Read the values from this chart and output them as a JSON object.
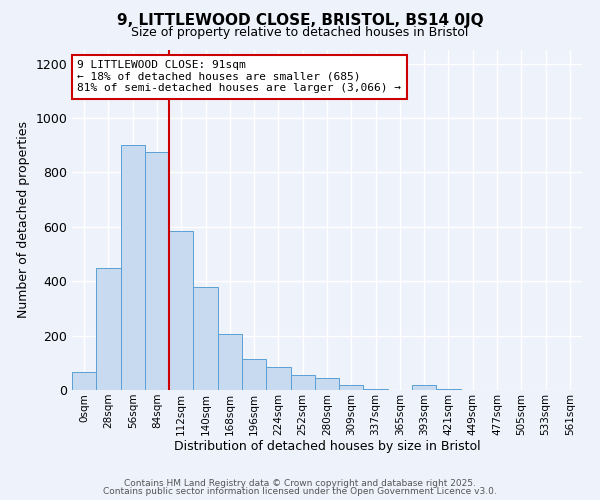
{
  "title": "9, LITTLEWOOD CLOSE, BRISTOL, BS14 0JQ",
  "subtitle": "Size of property relative to detached houses in Bristol",
  "xlabel": "Distribution of detached houses by size in Bristol",
  "ylabel": "Number of detached properties",
  "bin_labels": [
    "0sqm",
    "28sqm",
    "56sqm",
    "84sqm",
    "112sqm",
    "140sqm",
    "168sqm",
    "196sqm",
    "224sqm",
    "252sqm",
    "280sqm",
    "309sqm",
    "337sqm",
    "365sqm",
    "393sqm",
    "421sqm",
    "449sqm",
    "477sqm",
    "505sqm",
    "533sqm",
    "561sqm"
  ],
  "bar_values": [
    65,
    450,
    900,
    875,
    585,
    380,
    205,
    115,
    85,
    55,
    45,
    18,
    5,
    0,
    20,
    5,
    0,
    0,
    0,
    0,
    0
  ],
  "bar_color": "#c8daf0",
  "bar_edge_color": "#5a9fd4",
  "vline_x": 3,
  "vline_color": "#cc0000",
  "ylim": [
    0,
    1250
  ],
  "yticks": [
    0,
    200,
    400,
    600,
    800,
    1000,
    1200
  ],
  "annotation_title": "9 LITTLEWOOD CLOSE: 91sqm",
  "annotation_line1": "← 18% of detached houses are smaller (685)",
  "annotation_line2": "81% of semi-detached houses are larger (3,066) →",
  "annotation_box_color": "#cc0000",
  "footer1": "Contains HM Land Registry data © Crown copyright and database right 2025.",
  "footer2": "Contains public sector information licensed under the Open Government Licence v3.0.",
  "bg_color": "#eef2fb",
  "plot_bg_color": "#eef2fb",
  "title_fontsize": 11,
  "subtitle_fontsize": 9
}
